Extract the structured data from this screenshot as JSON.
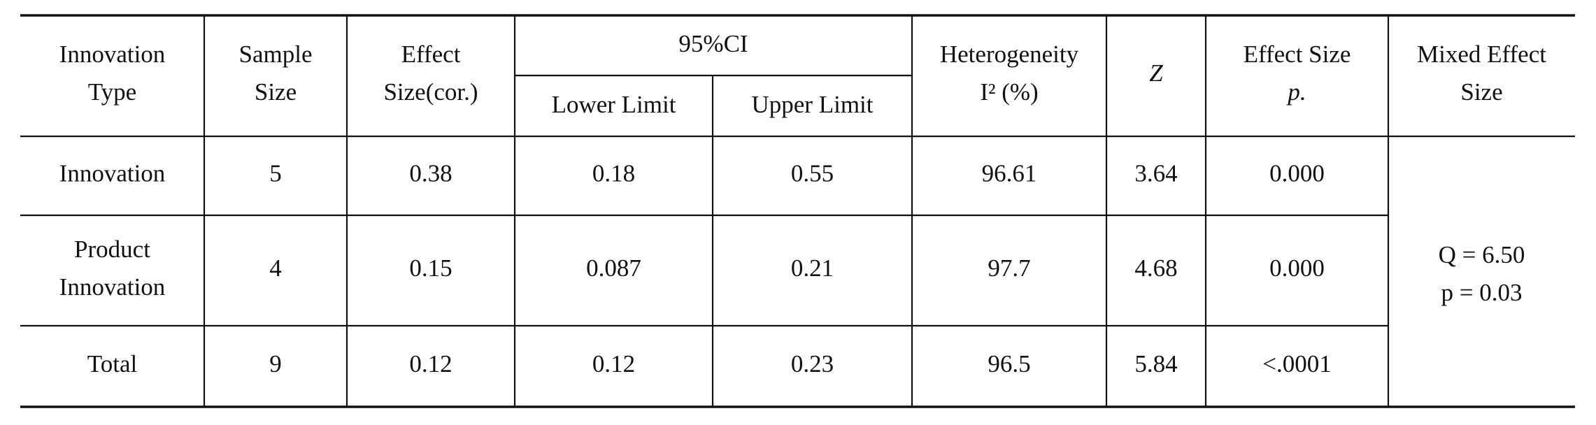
{
  "header": {
    "row1": [
      [
        "Innovation",
        "Type"
      ],
      [
        "Sample",
        "Size"
      ],
      [
        "Effect",
        "Size(cor.)"
      ],
      [
        "95%CI"
      ],
      [
        "Heterogeneity",
        "I² (%)"
      ],
      [
        "Z"
      ],
      [
        "Effect Size",
        "p."
      ],
      [
        "Mixed Effect",
        "Size"
      ]
    ],
    "row2": [
      [
        "Lower Limit"
      ],
      [
        "Upper Limit"
      ]
    ]
  },
  "rows": [
    [
      [
        "Innovation"
      ],
      [
        "5"
      ],
      [
        "0.38"
      ],
      [
        "0.18"
      ],
      [
        "0.55"
      ],
      [
        "96.61"
      ],
      [
        "3.64"
      ],
      [
        "0.000"
      ]
    ],
    [
      [
        "Product",
        "Innovation"
      ],
      [
        "4"
      ],
      [
        "0.15"
      ],
      [
        "0.087"
      ],
      [
        "0.21"
      ],
      [
        "97.7"
      ],
      [
        "4.68"
      ],
      [
        "0.000"
      ]
    ],
    [
      [
        "Total"
      ],
      [
        "9"
      ],
      [
        "0.12"
      ],
      [
        "0.12"
      ],
      [
        "0.23"
      ],
      [
        "96.5"
      ],
      [
        "5.84"
      ],
      [
        "<.0001"
      ]
    ]
  ],
  "mixed_effect": [
    "Q = 6.50",
    "p = 0.03"
  ]
}
